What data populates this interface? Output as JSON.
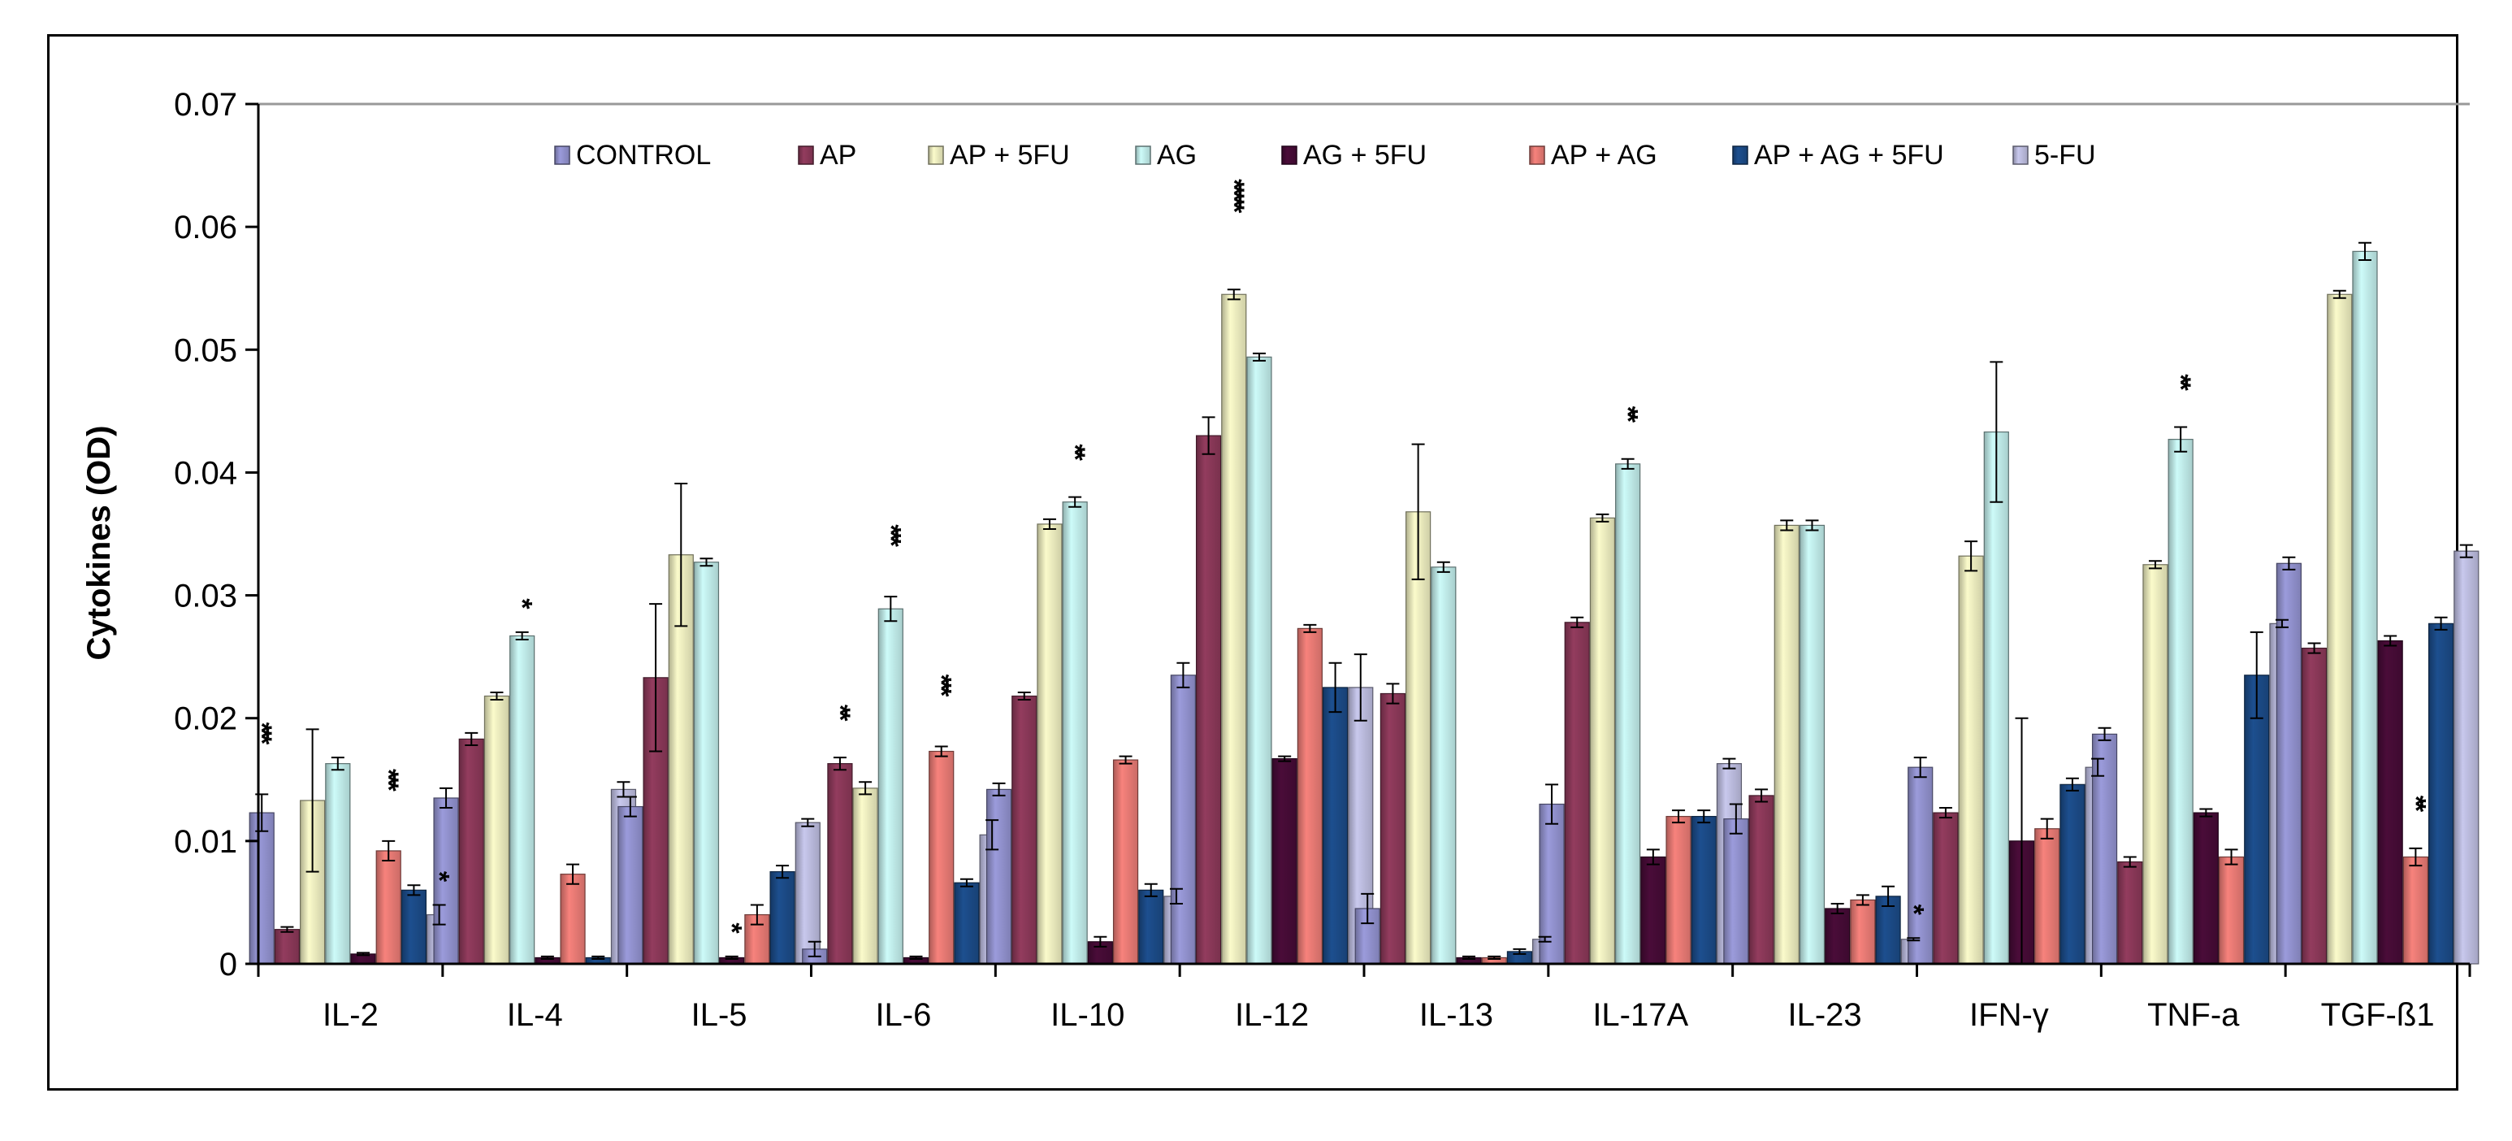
{
  "chart_data": {
    "type": "bar",
    "title": "",
    "xlabel": "",
    "ylabel": "Cytokines (OD)",
    "ylim": [
      0,
      0.07
    ],
    "yticks": [
      "0",
      "0.01",
      "0.02",
      "0.03",
      "0.04",
      "0.05",
      "0.06",
      "0.07"
    ],
    "legend_position": "top",
    "grid": false,
    "categories": [
      "IL-2",
      "IL-4",
      "IL-5",
      "IL-6",
      "IL-10",
      "IL-12",
      "IL-13",
      "IL-17A",
      "IL-23",
      "IFN-γ",
      "TNF-a",
      "TGF-ß1"
    ],
    "series": [
      {
        "name": "CONTROL",
        "color": "#9b9bdb",
        "values": [
          0.0123,
          0.0135,
          0.0128,
          0.0012,
          0.0142,
          0.0235,
          0.0045,
          0.013,
          0.0118,
          0.016,
          0.0187,
          0.0326
        ],
        "errors": [
          0.0015,
          0.0008,
          0.0008,
          0.0006,
          0.0005,
          0.001,
          0.0012,
          0.0016,
          0.0012,
          0.0008,
          0.0005,
          0.0005
        ]
      },
      {
        "name": "AP",
        "color": "#933c5e",
        "values": [
          0.0028,
          0.0183,
          0.0233,
          0.0163,
          0.0218,
          0.043,
          0.022,
          0.0278,
          0.0137,
          0.0123,
          0.0083,
          0.0257
        ],
        "errors": [
          0.0002,
          0.0005,
          0.006,
          0.0005,
          0.0003,
          0.0015,
          0.0008,
          0.0004,
          0.0005,
          0.0004,
          0.0004,
          0.0004
        ]
      },
      {
        "name": "AP + 5FU",
        "color": "#fbfbcb",
        "values": [
          0.0133,
          0.0218,
          0.0333,
          0.0143,
          0.0358,
          0.0545,
          0.0368,
          0.0363,
          0.0357,
          0.0332,
          0.0325,
          0.0545
        ],
        "errors": [
          0.0058,
          0.0003,
          0.0058,
          0.0005,
          0.0004,
          0.0004,
          0.0055,
          0.0003,
          0.0004,
          0.0012,
          0.0003,
          0.0003
        ]
      },
      {
        "name": "AG",
        "color": "#cdfbf9",
        "values": [
          0.0163,
          0.0267,
          0.0327,
          0.0289,
          0.0376,
          0.0494,
          0.0323,
          0.0407,
          0.0357,
          0.0433,
          0.0427,
          0.058
        ],
        "errors": [
          0.0005,
          0.0003,
          0.0003,
          0.001,
          0.0004,
          0.0003,
          0.0004,
          0.0004,
          0.0004,
          0.0057,
          0.001,
          0.0007
        ]
      },
      {
        "name": "AG + 5FU",
        "color": "#4a0c39",
        "values": [
          0.0008,
          0.0005,
          0.0005,
          0.0005,
          0.0018,
          0.0167,
          0.0005,
          0.0087,
          0.0045,
          0.01,
          0.0123,
          0.0263
        ],
        "errors": [
          0.0001,
          0.0001,
          0.0001,
          0.0001,
          0.0004,
          0.0002,
          0.0001,
          0.0006,
          0.0004,
          0.01,
          0.0003,
          0.0004
        ]
      },
      {
        "name": "AP + AG",
        "color": "#f7827c",
        "values": [
          0.0092,
          0.0073,
          0.004,
          0.0173,
          0.0166,
          0.0273,
          0.0005,
          0.012,
          0.0052,
          0.011,
          0.0087,
          0.0087
        ],
        "errors": [
          0.0008,
          0.0008,
          0.0008,
          0.0004,
          0.0003,
          0.0003,
          0.0001,
          0.0005,
          0.0004,
          0.0008,
          0.0006,
          0.0007
        ]
      },
      {
        "name": "AP + AG + 5FU",
        "color": "#1d4f8f",
        "values": [
          0.006,
          0.0005,
          0.0075,
          0.0066,
          0.006,
          0.0225,
          0.001,
          0.012,
          0.0055,
          0.0146,
          0.0235,
          0.0277
        ],
        "errors": [
          0.0004,
          0.0001,
          0.0005,
          0.0003,
          0.0005,
          0.002,
          0.0002,
          0.0005,
          0.0008,
          0.0005,
          0.0035,
          0.0005
        ]
      },
      {
        "name": "5-FU",
        "color": "#c8c8ed",
        "values": [
          0.004,
          0.0142,
          0.0115,
          0.0105,
          0.0055,
          0.0225,
          0.002,
          0.0163,
          0.002,
          0.016,
          0.0277,
          0.0336
        ],
        "errors": [
          0.0008,
          0.0006,
          0.0003,
          0.0012,
          0.0006,
          0.0027,
          0.0002,
          0.0004,
          0.0001,
          0.0007,
          0.0003,
          0.0005
        ]
      }
    ],
    "annotations": [
      {
        "category": "IL-2",
        "series": "CONTROL",
        "text": "***"
      },
      {
        "category": "IL-2",
        "series": "AP + AG",
        "text": "***"
      },
      {
        "category": "IL-2",
        "series": "5-FU",
        "text": "*"
      },
      {
        "category": "IL-4",
        "series": "AG",
        "text": "*"
      },
      {
        "category": "IL-5",
        "series": "AG + 5FU",
        "text": "*"
      },
      {
        "category": "IL-6",
        "series": "AP",
        "text": "**"
      },
      {
        "category": "IL-6",
        "series": "AG",
        "text": "***"
      },
      {
        "category": "IL-6",
        "series": "AP + AG",
        "text": "***"
      },
      {
        "category": "IL-10",
        "series": "AG",
        "text": "**"
      },
      {
        "category": "IL-12",
        "series": "AP + 5FU",
        "text": "*****"
      },
      {
        "category": "IL-17A",
        "series": "AG",
        "text": "**"
      },
      {
        "category": "IL-23",
        "series": "5-FU",
        "text": "*"
      },
      {
        "category": "TNF-a",
        "series": "AG",
        "text": "**"
      },
      {
        "category": "TGF-ß1",
        "series": "AP + AG",
        "text": "**"
      }
    ]
  }
}
